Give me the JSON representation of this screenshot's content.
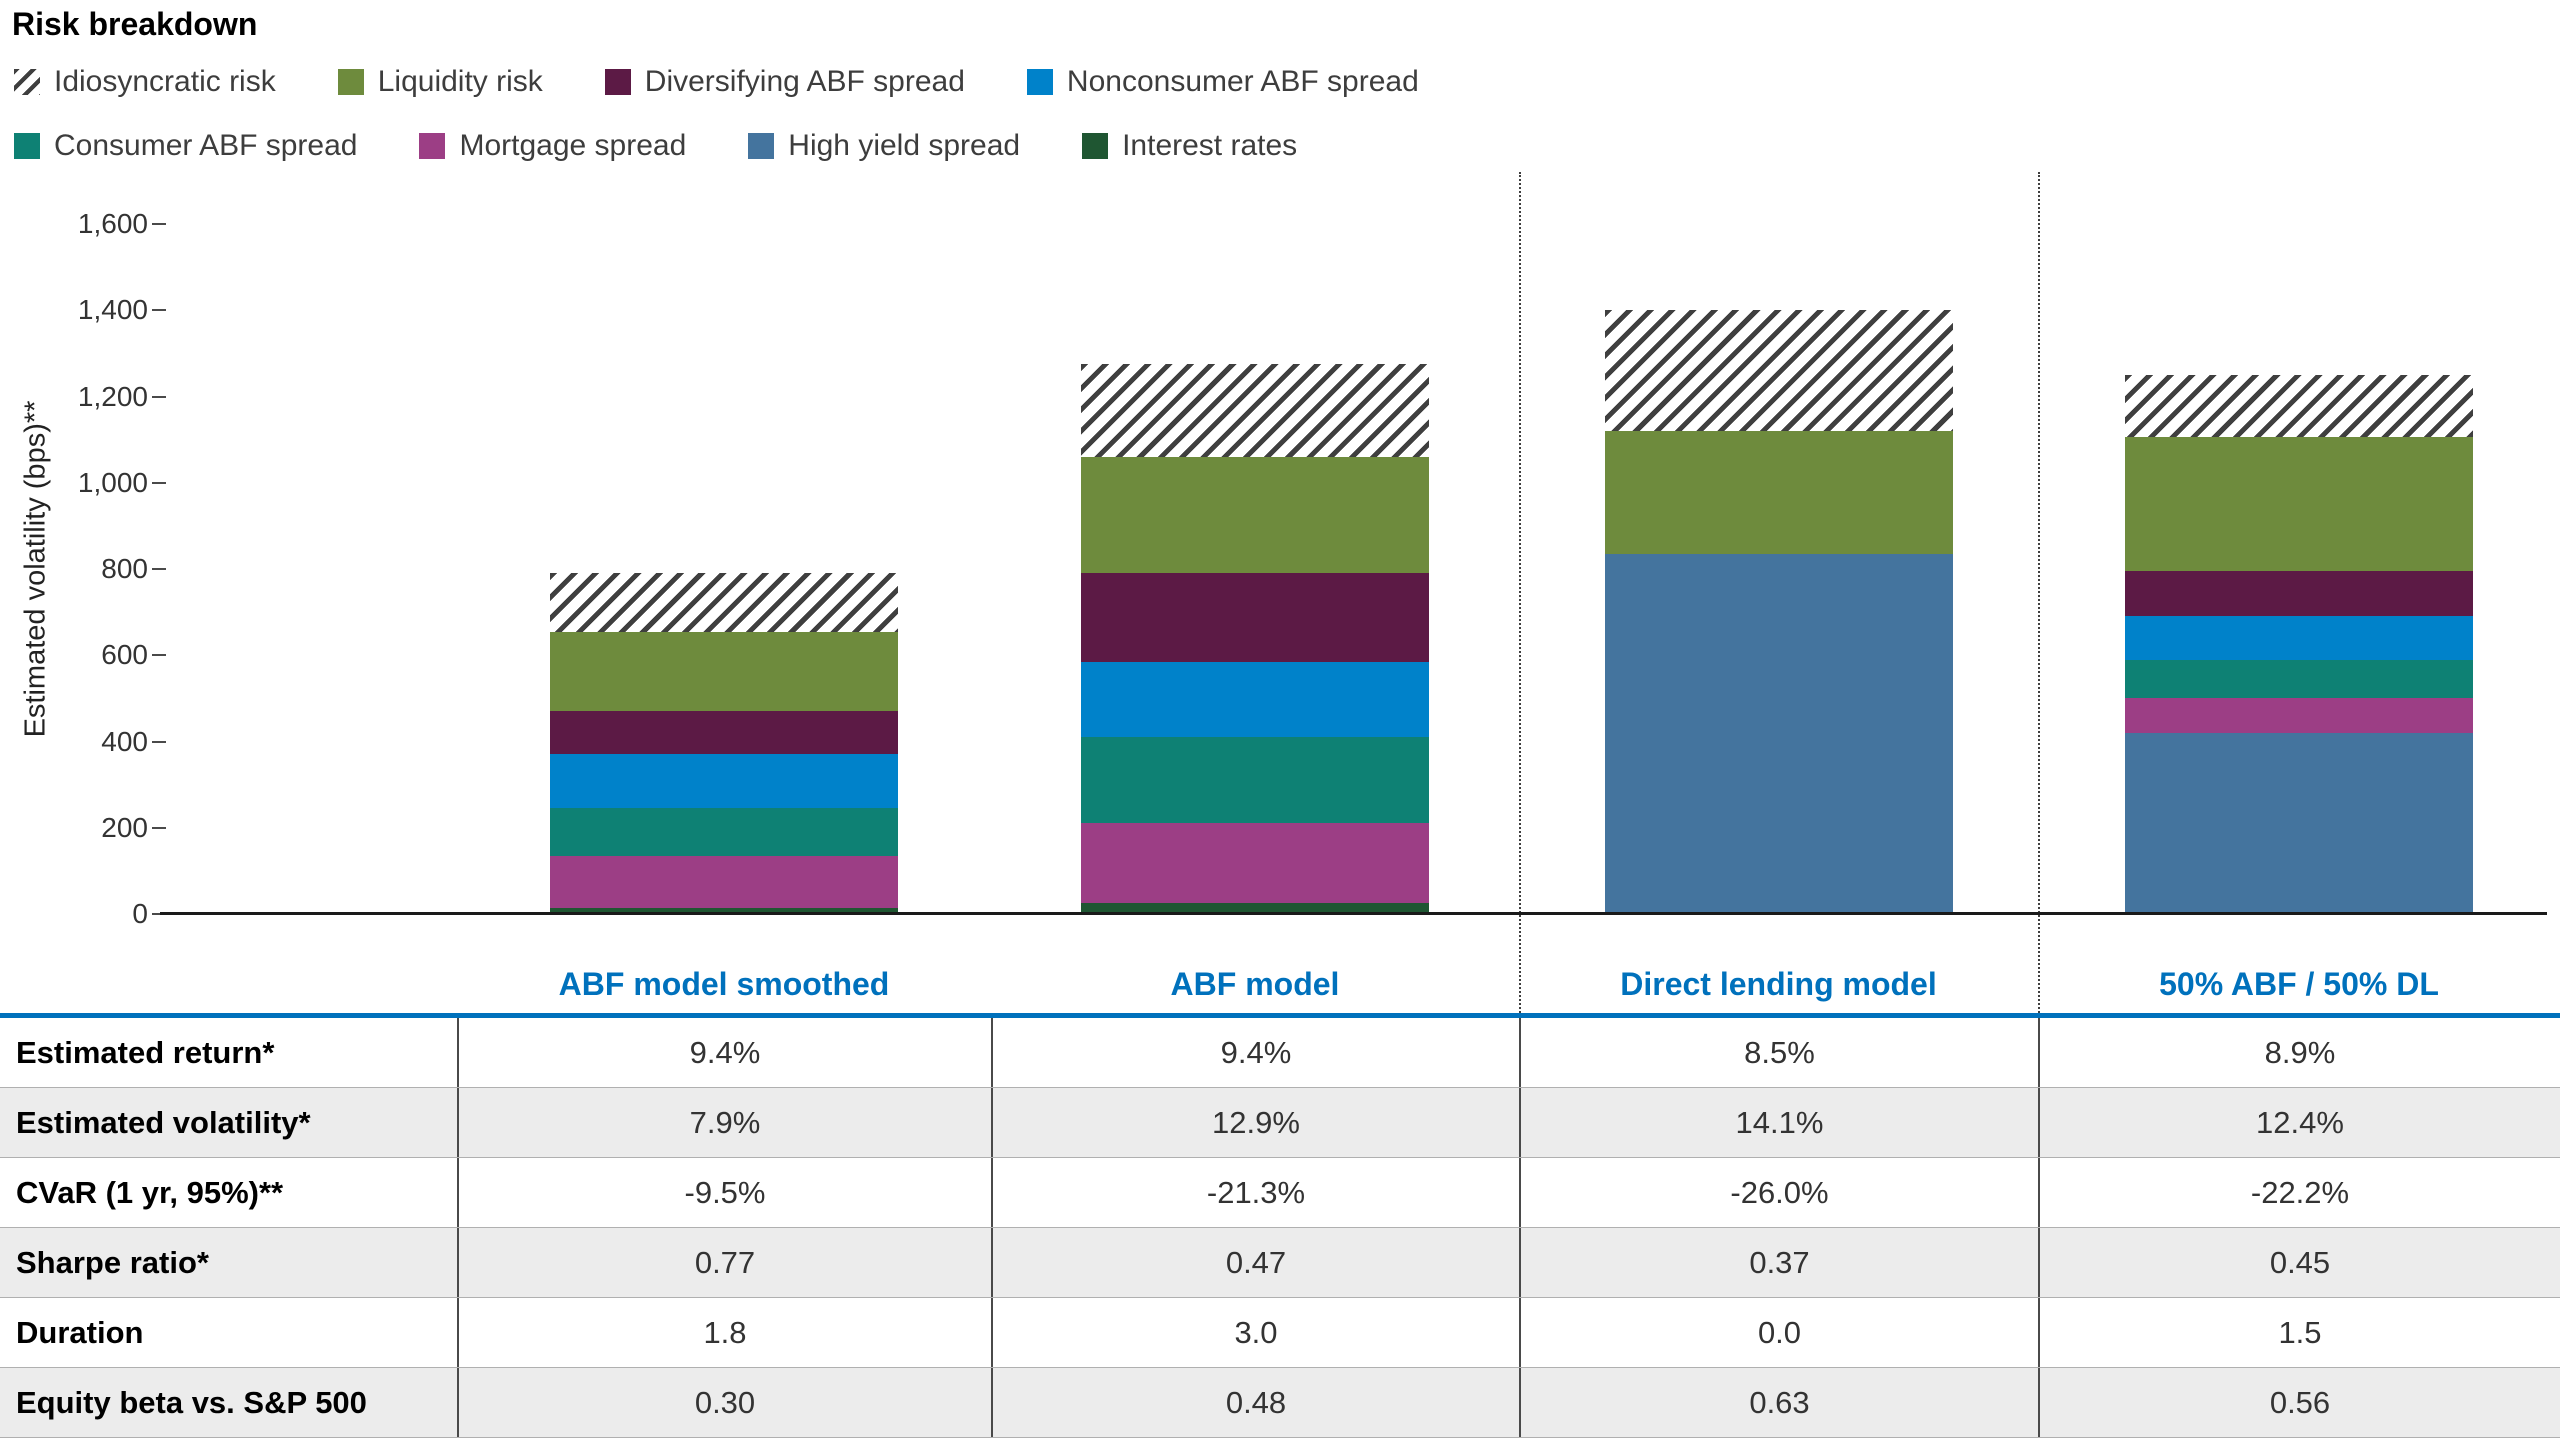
{
  "title": "Risk breakdown",
  "colors": {
    "accent_blue": "#0071bc",
    "hatch_stripe": "#3f3f3f",
    "row_shade": "#ececec"
  },
  "legend": {
    "rows": [
      [
        {
          "label": "Idiosyncratic risk",
          "swatch": "hatch"
        },
        {
          "label": "Liquidity risk",
          "color": "#6e8b3d"
        },
        {
          "label": "Diversifying ABF spread",
          "color": "#5c1a45"
        },
        {
          "label": "Nonconsumer ABF spread",
          "color": "#0082ca"
        }
      ],
      [
        {
          "label": "Consumer ABF spread",
          "color": "#0e8174"
        },
        {
          "label": "Mortgage spread",
          "color": "#9c3e85"
        },
        {
          "label": "High yield spread",
          "color": "#44749e"
        },
        {
          "label": "Interest rates",
          "color": "#1f5632"
        }
      ]
    ]
  },
  "chart_data": {
    "type": "bar",
    "stacked": true,
    "title": "Risk breakdown",
    "ylabel": "Estimated volatility (bps)**",
    "ylim": [
      0,
      1600
    ],
    "ytick_step": 200,
    "ytick_labels": [
      "0",
      "200",
      "400",
      "600",
      "800",
      "1,000",
      "1,200",
      "1,400",
      "1,600"
    ],
    "grid": false,
    "legend_position": "top",
    "categories": [
      "ABF model smoothed",
      "ABF model",
      "Direct lending model",
      "50% ABF / 50% DL"
    ],
    "series": [
      {
        "name": "Interest rates",
        "color": "#1f5632",
        "values": [
          15,
          25,
          0,
          0
        ]
      },
      {
        "name": "High yield spread",
        "color": "#44749e",
        "values": [
          0,
          0,
          835,
          420
        ]
      },
      {
        "name": "Mortgage spread",
        "color": "#9c3e85",
        "values": [
          120,
          185,
          0,
          80
        ]
      },
      {
        "name": "Consumer ABF spread",
        "color": "#0e8174",
        "values": [
          110,
          200,
          0,
          90
        ]
      },
      {
        "name": "Nonconsumer ABF spread",
        "color": "#0082ca",
        "values": [
          125,
          175,
          0,
          100
        ]
      },
      {
        "name": "Diversifying ABF spread",
        "color": "#5c1a45",
        "values": [
          100,
          205,
          0,
          105
        ]
      },
      {
        "name": "Liquidity risk",
        "color": "#6e8b3d",
        "values": [
          185,
          270,
          285,
          310
        ]
      },
      {
        "name": "Idiosyncratic risk",
        "color": "hatch",
        "values": [
          135,
          215,
          280,
          145
        ]
      }
    ],
    "totals": [
      790,
      1275,
      1400,
      1250
    ]
  },
  "table": {
    "column_headers": [
      "ABF model smoothed",
      "ABF model",
      "Direct lending model",
      "50% ABF / 50% DL"
    ],
    "rows": [
      {
        "label": "Estimated return*",
        "values": [
          "9.4%",
          "9.4%",
          "8.5%",
          "8.9%"
        ],
        "shaded": false
      },
      {
        "label": "Estimated volatility*",
        "values": [
          "7.9%",
          "12.9%",
          "14.1%",
          "12.4%"
        ],
        "shaded": true
      },
      {
        "label": "CVaR (1 yr, 95%)**",
        "values": [
          "-9.5%",
          "-21.3%",
          "-26.0%",
          "-22.2%"
        ],
        "shaded": false
      },
      {
        "label": "Sharpe ratio*",
        "values": [
          "0.77",
          "0.47",
          "0.37",
          "0.45"
        ],
        "shaded": true
      },
      {
        "label": "Duration",
        "values": [
          "1.8",
          "3.0",
          "0.0",
          "1.5"
        ],
        "shaded": false
      },
      {
        "label": "Equity beta vs. S&P 500",
        "values": [
          "0.30",
          "0.48",
          "0.63",
          "0.56"
        ],
        "shaded": true
      }
    ]
  }
}
